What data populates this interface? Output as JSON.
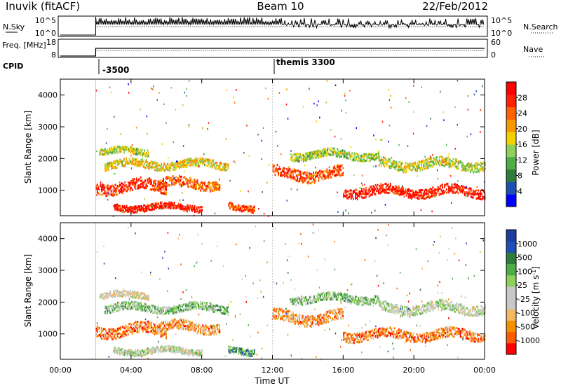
{
  "header": {
    "station": "Inuvik (fitACF)",
    "beam": "Beam 10",
    "date": "22/Feb/2012"
  },
  "status_panels": {
    "nsky_label": "N.Sky",
    "nsky_ticks": [
      "10^5",
      "10^0"
    ],
    "nsearch_label": "N.Search",
    "nsearch_ticks": [
      "10^5",
      "10^0"
    ],
    "freq_label": "Freq. [MHz]",
    "freq_ticks": [
      "18",
      "8"
    ],
    "nave_label": "Nave",
    "nave_ticks": [
      "60",
      "0"
    ],
    "cpid_label": "CPID",
    "cpid_entries": [
      {
        "label": "-3500",
        "time": "02:00"
      },
      {
        "label": "themis 3300",
        "time": "12:00"
      }
    ]
  },
  "chart_data": [
    {
      "type": "heatmap",
      "title": "",
      "xlabel": "Time UT",
      "ylabel": "Slant Range [km]",
      "x_ticks": [
        "00:00",
        "04:00",
        "08:00",
        "12:00",
        "16:00",
        "20:00",
        "00:00"
      ],
      "y_ticks": [
        "1000",
        "2000",
        "3000",
        "4000"
      ],
      "ylim": [
        200,
        4500
      ],
      "colorbar": {
        "label": "Power [dB]",
        "ticks": [
          "28",
          "24",
          "20",
          "16",
          "12",
          "8",
          "4"
        ],
        "colors": [
          "#0000ff",
          "#1f4fb4",
          "#2e7d3a",
          "#4cae45",
          "#8fd05a",
          "#f5d000",
          "#f79a00",
          "#ff6000",
          "#ff2000",
          "#ff0000"
        ]
      },
      "echo_bands": [
        {
          "t_start": 2.0,
          "t_end": 6.0,
          "range_center": 1100,
          "range_width": 350,
          "level": 0.85
        },
        {
          "t_start": 2.5,
          "t_end": 9.5,
          "range_center": 1800,
          "range_width": 250,
          "level": 0.55
        },
        {
          "t_start": 2.2,
          "t_end": 5.0,
          "range_center": 2200,
          "range_width": 200,
          "level": 0.5
        },
        {
          "t_start": 5.5,
          "t_end": 9.0,
          "range_center": 1200,
          "range_width": 300,
          "level": 0.75
        },
        {
          "t_start": 3.0,
          "t_end": 8.0,
          "range_center": 450,
          "range_width": 200,
          "level": 0.9
        },
        {
          "t_start": 9.5,
          "t_end": 11.0,
          "range_center": 450,
          "range_width": 200,
          "level": 0.8
        },
        {
          "t_start": 12.0,
          "t_end": 16.0,
          "range_center": 1500,
          "range_width": 350,
          "level": 0.8
        },
        {
          "t_start": 13.0,
          "t_end": 18.0,
          "range_center": 2100,
          "range_width": 250,
          "level": 0.45
        },
        {
          "t_start": 16.0,
          "t_end": 24.0,
          "range_center": 950,
          "range_width": 300,
          "level": 0.9
        },
        {
          "t_start": 18.0,
          "t_end": 24.0,
          "range_center": 1800,
          "range_width": 300,
          "level": 0.5
        }
      ]
    },
    {
      "type": "heatmap",
      "title": "",
      "xlabel": "Time UT",
      "ylabel": "Slant Range [km]",
      "x_ticks": [
        "00:00",
        "04:00",
        "08:00",
        "12:00",
        "16:00",
        "20:00",
        "00:00"
      ],
      "y_ticks": [
        "1000",
        "2000",
        "3000",
        "4000"
      ],
      "ylim": [
        200,
        4500
      ],
      "colorbar": {
        "label": "Velocity [m s^-1]",
        "ticks": [
          "1000",
          "500",
          "100",
          "25",
          "-25",
          "-100",
          "-500",
          "-1000"
        ],
        "colors": [
          "#ff0000",
          "#ff5a00",
          "#f29000",
          "#f5b860",
          "#c8c8c8",
          "#c8c8c8",
          "#8fd05a",
          "#4cae45",
          "#2e7d3a",
          "#1f4fb4",
          "#1e3ca0"
        ]
      },
      "echo_bands": [
        {
          "t_start": 2.0,
          "t_end": 6.0,
          "range_center": 1100,
          "range_width": 350,
          "level": 0.2
        },
        {
          "t_start": 2.5,
          "t_end": 9.5,
          "range_center": 1800,
          "range_width": 250,
          "level": 0.6
        },
        {
          "t_start": 2.2,
          "t_end": 5.0,
          "range_center": 2200,
          "range_width": 200,
          "level": 0.45
        },
        {
          "t_start": 5.5,
          "t_end": 9.0,
          "range_center": 1200,
          "range_width": 300,
          "level": 0.25
        },
        {
          "t_start": 3.0,
          "t_end": 8.0,
          "range_center": 450,
          "range_width": 200,
          "level": 0.5
        },
        {
          "t_start": 9.5,
          "t_end": 11.0,
          "range_center": 450,
          "range_width": 200,
          "level": 0.7
        },
        {
          "t_start": 12.0,
          "t_end": 16.0,
          "range_center": 1500,
          "range_width": 350,
          "level": 0.25
        },
        {
          "t_start": 13.0,
          "t_end": 18.0,
          "range_center": 2100,
          "range_width": 250,
          "level": 0.6
        },
        {
          "t_start": 16.0,
          "t_end": 24.0,
          "range_center": 950,
          "range_width": 300,
          "level": 0.2
        },
        {
          "t_start": 18.0,
          "t_end": 24.0,
          "range_center": 1800,
          "range_width": 300,
          "level": 0.5
        }
      ]
    }
  ]
}
